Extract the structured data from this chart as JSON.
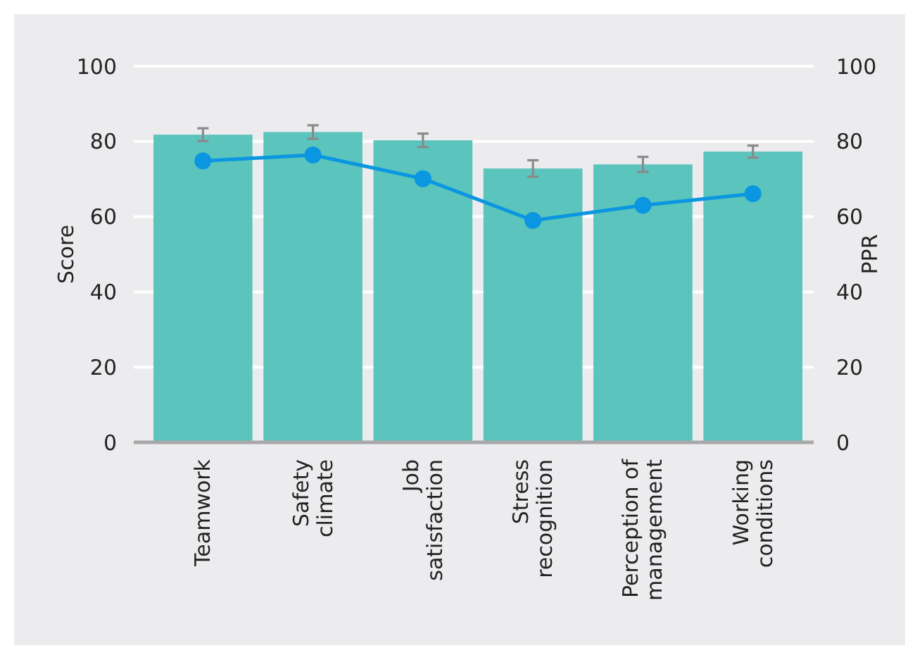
{
  "chart_data": {
    "type": "bar",
    "categories": [
      "Teamwork",
      "Safety\nclimate",
      "Job\nsatisfaction",
      "Stress\nrecognition",
      "Perception of\nmanagement",
      "Working\nconditions"
    ],
    "series": [
      {
        "color": "#5bc4bc",
        "values": [
          81.8,
          82.5,
          80.3,
          72.8,
          73.9,
          77.3
        ],
        "errors": [
          1.7,
          1.8,
          1.8,
          2.2,
          2,
          1.6
        ]
      },
      {
        "type": "line",
        "axis": "y2",
        "color": "#0a96e0",
        "values": [
          74.8,
          76.4,
          70.1,
          59,
          63,
          66.1
        ]
      }
    ],
    "ylabel": "Score",
    "y2label": "PPR",
    "ylim": [
      0,
      100
    ],
    "yticks": [
      0,
      20,
      40,
      60,
      80,
      100
    ],
    "y2lim": [
      0,
      100
    ],
    "y2ticks": [
      0,
      20,
      40,
      60,
      80,
      100
    ],
    "grid": "y",
    "marker": "circle",
    "line_style": "solid"
  }
}
